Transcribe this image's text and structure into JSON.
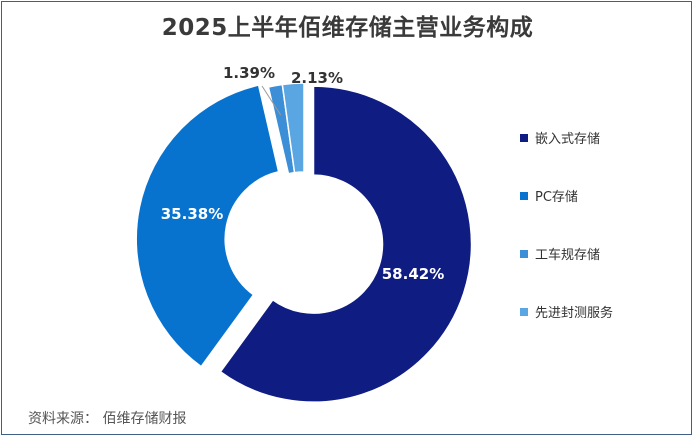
{
  "chart_data": {
    "type": "pie",
    "title": "2025上半年佰维存储主营业务构成",
    "series": [
      {
        "name": "嵌入式存储",
        "value": 58.42,
        "label": "58.42%",
        "color": "#0f1c82"
      },
      {
        "name": "PC存储",
        "value": 35.38,
        "label": "35.38%",
        "color": "#0873cf"
      },
      {
        "name": "工车规存储",
        "value": 1.39,
        "label": "1.39%",
        "color": "#3c8ed6"
      },
      {
        "name": "先进封测服务",
        "value": 2.13,
        "label": "2.13%",
        "color": "#5aa6e2"
      }
    ],
    "legend_position": "right"
  },
  "footer": {
    "source": "资料来源：  佰维存储财报"
  }
}
